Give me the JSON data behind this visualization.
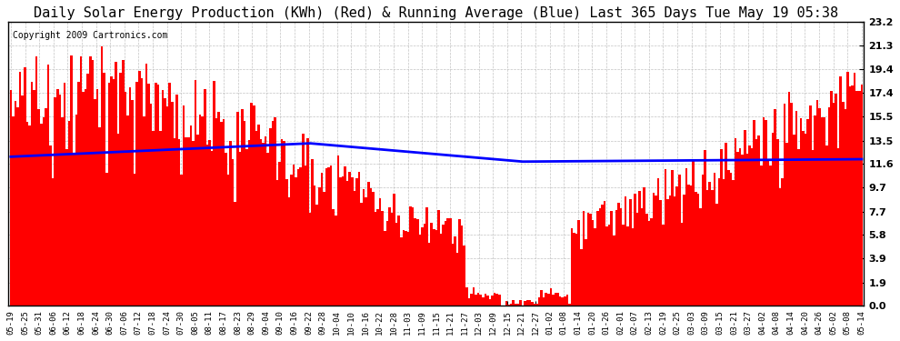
{
  "title": "Daily Solar Energy Production (KWh) (Red) & Running Average (Blue) Last 365 Days Tue May 19 05:38",
  "copyright_text": "Copyright 2009 Cartronics.com",
  "yticks": [
    0.0,
    1.9,
    3.9,
    5.8,
    7.7,
    9.7,
    11.6,
    13.5,
    15.5,
    17.4,
    19.4,
    21.3,
    23.2
  ],
  "ylim": [
    0.0,
    23.2
  ],
  "bar_color": "#FF0000",
  "line_color": "#0000FF",
  "background_color": "#FFFFFF",
  "grid_color": "#AAAAAA",
  "title_fontsize": 11,
  "copyright_fontsize": 7,
  "x_tick_labels": [
    "05-19",
    "05-25",
    "05-31",
    "06-06",
    "06-12",
    "06-18",
    "06-24",
    "06-30",
    "07-06",
    "07-12",
    "07-18",
    "07-24",
    "07-30",
    "08-05",
    "08-11",
    "08-17",
    "08-23",
    "08-29",
    "09-04",
    "09-10",
    "09-16",
    "09-22",
    "09-28",
    "10-04",
    "10-10",
    "10-16",
    "10-22",
    "10-28",
    "11-03",
    "11-09",
    "11-15",
    "11-21",
    "11-27",
    "12-03",
    "12-09",
    "12-15",
    "12-21",
    "12-27",
    "01-02",
    "01-08",
    "01-14",
    "01-20",
    "01-26",
    "02-01",
    "02-07",
    "02-13",
    "02-19",
    "02-25",
    "03-03",
    "03-09",
    "03-15",
    "03-21",
    "03-27",
    "04-02",
    "04-08",
    "04-14",
    "04-20",
    "04-26",
    "05-02",
    "05-08",
    "05-14"
  ]
}
